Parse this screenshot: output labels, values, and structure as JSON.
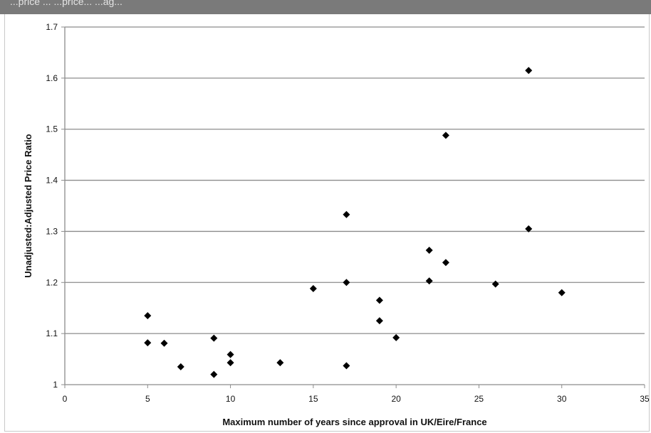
{
  "header": {
    "text": "...price ... ...price... ...ag..."
  },
  "colors": {
    "header_bg": "#7a7a7a",
    "gridline": "#8c8c8c",
    "marker": "#000000"
  },
  "chart_data": {
    "type": "scatter",
    "title": "",
    "xlabel": "Maximum number of years since approval in UK/Eire/France",
    "ylabel": "Unadjusted:Adjusted Price Ratio",
    "xlim": [
      0,
      35
    ],
    "ylim": [
      1,
      1.7
    ],
    "x_ticks": [
      0,
      5,
      10,
      15,
      20,
      25,
      30,
      35
    ],
    "y_ticks": [
      1,
      1.1,
      1.2,
      1.3,
      1.4,
      1.5,
      1.6,
      1.7
    ],
    "y_tick_labels": [
      "1",
      "1.1",
      "1.2",
      "1.3",
      "1.4",
      "1.5",
      "1.6",
      "1.7"
    ],
    "grid": "horizontal",
    "marker": "diamond",
    "x": [
      5,
      5,
      6,
      7,
      9,
      9,
      10,
      10,
      13,
      15,
      17,
      17,
      17,
      19,
      19,
      20,
      22,
      22,
      23,
      23,
      26,
      28,
      28,
      30
    ],
    "y": [
      1.135,
      1.082,
      1.081,
      1.035,
      1.091,
      1.02,
      1.059,
      1.043,
      1.043,
      1.188,
      1.333,
      1.2,
      1.037,
      1.165,
      1.125,
      1.092,
      1.263,
      1.203,
      1.488,
      1.239,
      1.197,
      1.615,
      1.305,
      1.18
    ]
  }
}
